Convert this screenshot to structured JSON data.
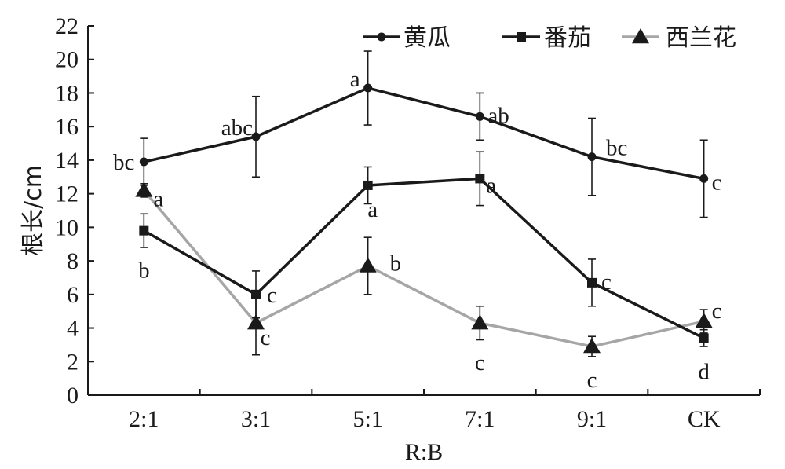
{
  "chart_data": {
    "type": "line",
    "title": "",
    "xlabel": "R:B",
    "ylabel": "根长/cm",
    "ylim": [
      0,
      22
    ],
    "yticks": [
      0,
      2,
      4,
      6,
      8,
      10,
      12,
      14,
      16,
      18,
      20,
      22
    ],
    "categories": [
      "2:1",
      "3:1",
      "5:1",
      "7:1",
      "9:1",
      "CK"
    ],
    "grid": false,
    "legend_position": "top-right",
    "series": [
      {
        "name": "黄瓜",
        "color": "#1a1a1a",
        "marker": "circle",
        "values": [
          13.9,
          15.4,
          18.3,
          16.6,
          14.2,
          12.9
        ],
        "error": [
          1.4,
          2.4,
          2.2,
          1.4,
          2.3,
          2.3
        ],
        "sig_labels": [
          "bc",
          "abc",
          "a",
          "ab",
          "bc",
          "c"
        ]
      },
      {
        "name": "番茄",
        "color": "#1a1a1a",
        "marker": "square",
        "values": [
          9.8,
          6.0,
          12.5,
          12.9,
          6.7,
          3.4
        ],
        "error": [
          1.0,
          1.4,
          1.1,
          1.6,
          1.4,
          0.5
        ],
        "sig_labels": [
          "b",
          "c",
          "a",
          "a",
          "c",
          "d"
        ]
      },
      {
        "name": "西兰花",
        "color": "#a6a6a6",
        "marker": "triangle",
        "values": [
          12.2,
          4.3,
          7.7,
          4.3,
          2.9,
          4.4
        ],
        "error": [
          0.4,
          1.9,
          1.7,
          1.0,
          0.6,
          0.7
        ],
        "sig_labels": [
          "a",
          "c",
          "b",
          "c",
          "c",
          "c"
        ]
      }
    ]
  }
}
